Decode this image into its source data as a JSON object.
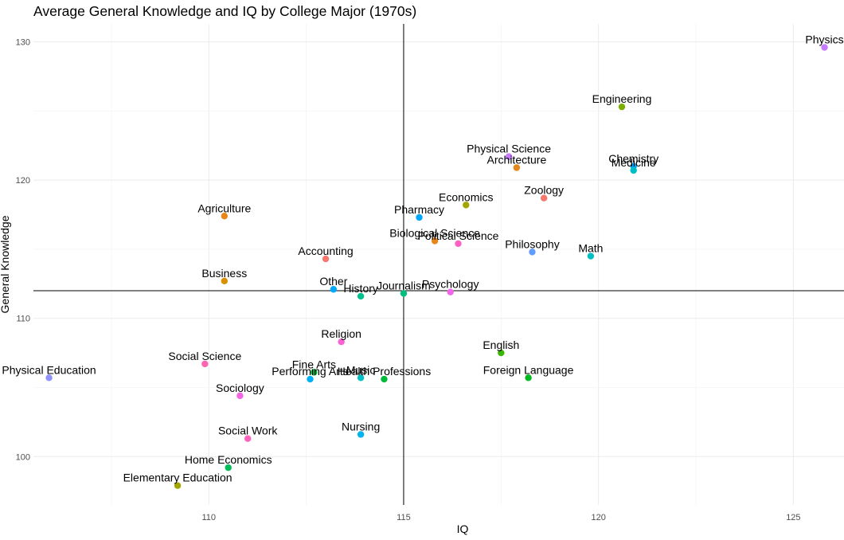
{
  "chart_data": {
    "type": "scatter",
    "title": "Average General Knowledge and IQ by College Major (1970s)",
    "xlabel": "IQ",
    "ylabel": "General Knowledge",
    "xlim": [
      105.5,
      126.3
    ],
    "ylim": [
      96.5,
      131.3
    ],
    "xticks": [
      110,
      115,
      120,
      125
    ],
    "yticks": [
      100,
      110,
      120,
      130
    ],
    "reference_lines": {
      "x": 115,
      "y": 112
    },
    "grid": true,
    "points": [
      {
        "label": "Physics",
        "x": 125.8,
        "y": 129.6,
        "color": "#c77cff"
      },
      {
        "label": "Engineering",
        "x": 120.6,
        "y": 125.3,
        "color": "#7cae00"
      },
      {
        "label": "Physical Science",
        "x": 117.7,
        "y": 121.7,
        "color": "#c77cff"
      },
      {
        "label": "Architecture",
        "x": 117.9,
        "y": 120.9,
        "color": "#e7861b"
      },
      {
        "label": "Chemistry",
        "x": 120.9,
        "y": 121.0,
        "color": "#00a9ff"
      },
      {
        "label": "Medicine",
        "x": 120.9,
        "y": 120.7,
        "color": "#00bfc4"
      },
      {
        "label": "Zoology",
        "x": 118.6,
        "y": 118.7,
        "color": "#f8766d"
      },
      {
        "label": "Economics",
        "x": 116.6,
        "y": 118.2,
        "color": "#a3a500"
      },
      {
        "label": "Pharmacy",
        "x": 115.4,
        "y": 117.3,
        "color": "#00a9ff"
      },
      {
        "label": "Agriculture",
        "x": 110.4,
        "y": 117.4,
        "color": "#e7861b"
      },
      {
        "label": "Biological Science",
        "x": 115.8,
        "y": 115.6,
        "color": "#e7861b"
      },
      {
        "label": "Political Science",
        "x": 116.4,
        "y": 115.4,
        "color": "#ff61c3"
      },
      {
        "label": "Philosophy",
        "x": 118.3,
        "y": 114.8,
        "color": "#619cff"
      },
      {
        "label": "Math",
        "x": 119.8,
        "y": 114.5,
        "color": "#00bfc4"
      },
      {
        "label": "Accounting",
        "x": 113.0,
        "y": 114.3,
        "color": "#f8766d"
      },
      {
        "label": "Business",
        "x": 110.4,
        "y": 112.7,
        "color": "#d89000"
      },
      {
        "label": "Other",
        "x": 113.2,
        "y": 112.1,
        "color": "#00a9ff"
      },
      {
        "label": "History",
        "x": 113.9,
        "y": 111.6,
        "color": "#00c08b"
      },
      {
        "label": "Journalism",
        "x": 115.0,
        "y": 111.8,
        "color": "#00bf7d"
      },
      {
        "label": "Psychology",
        "x": 116.2,
        "y": 111.9,
        "color": "#f066ea"
      },
      {
        "label": "Religion",
        "x": 113.4,
        "y": 108.3,
        "color": "#fc61d5"
      },
      {
        "label": "English",
        "x": 117.5,
        "y": 107.5,
        "color": "#39b600"
      },
      {
        "label": "Social Science",
        "x": 109.9,
        "y": 106.7,
        "color": "#ff64b0"
      },
      {
        "label": "Physical Education",
        "x": 105.9,
        "y": 105.7,
        "color": "#8f91ff"
      },
      {
        "label": "Fine Arts",
        "x": 112.7,
        "y": 106.1,
        "color": "#00ba38"
      },
      {
        "label": "Performing Arts",
        "x": 112.6,
        "y": 105.6,
        "color": "#00b0f6"
      },
      {
        "label": "Music",
        "x": 113.9,
        "y": 105.7,
        "color": "#00bfc4"
      },
      {
        "label": "Health Professions",
        "x": 114.5,
        "y": 105.6,
        "color": "#00ba38"
      },
      {
        "label": "Foreign Language",
        "x": 118.2,
        "y": 105.7,
        "color": "#00b81f"
      },
      {
        "label": "Sociology",
        "x": 110.8,
        "y": 104.4,
        "color": "#f564e3"
      },
      {
        "label": "Social Work",
        "x": 111.0,
        "y": 101.3,
        "color": "#ff62bc"
      },
      {
        "label": "Nursing",
        "x": 113.9,
        "y": 101.6,
        "color": "#00b4ef"
      },
      {
        "label": "Home Economics",
        "x": 110.5,
        "y": 99.2,
        "color": "#00bc59"
      },
      {
        "label": "Elementary Education",
        "x": 109.2,
        "y": 97.9,
        "color": "#a3a500"
      }
    ]
  }
}
